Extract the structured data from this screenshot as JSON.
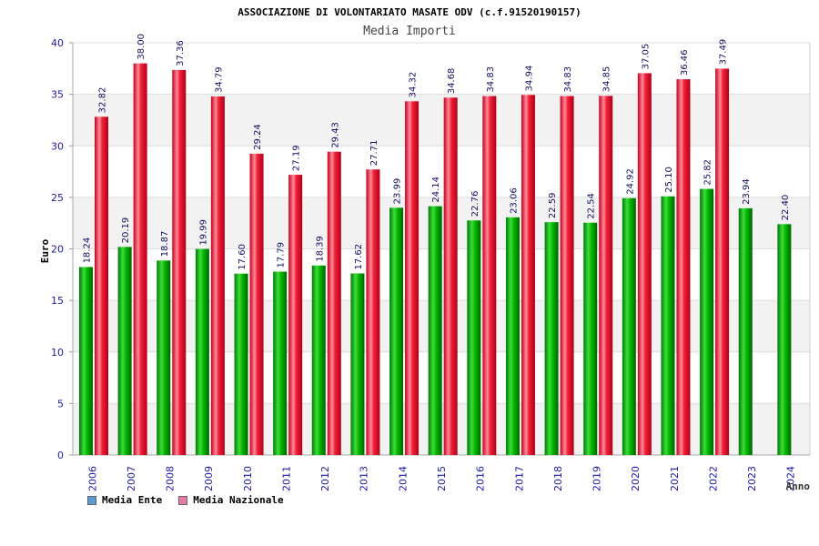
{
  "chart_data": {
    "type": "bar",
    "title": "ASSOCIAZIONE DI VOLONTARIATO MASATE ODV (c.f.91520190157)",
    "subtitle": "Media Importi",
    "xlabel": "Anno",
    "ylabel": "Euro",
    "ylim": [
      0,
      40
    ],
    "yticks": [
      0,
      5,
      10,
      15,
      20,
      25,
      30,
      35,
      40
    ],
    "categories": [
      "2006",
      "2007",
      "2008",
      "2009",
      "2010",
      "2011",
      "2012",
      "2013",
      "2014",
      "2015",
      "2016",
      "2017",
      "2018",
      "2019",
      "2020",
      "2021",
      "2022",
      "2023",
      "2024"
    ],
    "series": [
      {
        "name": "Media Ente",
        "color": "#00a000",
        "values": [
          18.24,
          20.19,
          18.87,
          19.99,
          17.6,
          17.79,
          18.39,
          17.62,
          23.99,
          24.14,
          22.76,
          23.06,
          22.59,
          22.54,
          24.92,
          25.1,
          25.82,
          23.94,
          22.4
        ],
        "labels": [
          "18.24",
          "20.19",
          "18.87",
          "19.99",
          "17.60",
          "17.79",
          "18.39",
          "17.62",
          "23.99",
          "24.14",
          "22.76",
          "23.06",
          "22.59",
          "22.54",
          "24.92",
          "25.10",
          "25.82",
          "23.94",
          "22.40"
        ]
      },
      {
        "name": "Media Nazionale",
        "color": "#e0001a",
        "values": [
          32.82,
          38.0,
          37.36,
          34.79,
          29.24,
          27.19,
          29.43,
          27.71,
          34.32,
          34.68,
          34.83,
          34.94,
          34.83,
          34.85,
          37.05,
          36.46,
          37.49,
          null,
          null
        ],
        "labels": [
          "32.82",
          "38.00",
          "37.36",
          "34.79",
          "29.24",
          "27.19",
          "29.43",
          "27.71",
          "34.32",
          "34.68",
          "34.83",
          "34.94",
          "34.83",
          "34.85",
          "37.05",
          "36.46",
          "37.49",
          null,
          null
        ]
      }
    ],
    "legend": [
      {
        "name": "Media Ente",
        "color": "#5b9bd5"
      },
      {
        "name": "Media Nazionale",
        "color": "#e87aa8"
      }
    ],
    "grid": true
  }
}
